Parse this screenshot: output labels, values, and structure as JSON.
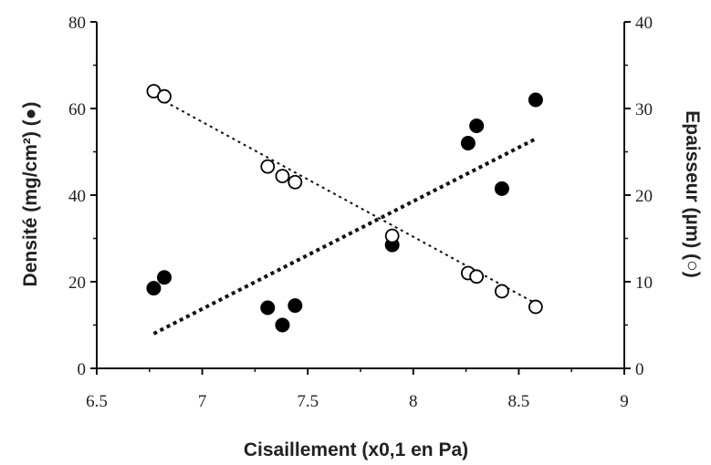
{
  "chart_data": {
    "type": "scatter",
    "xlabel": "Cisaillement (x0,1 en Pa)",
    "ylabel_left": "Densité (mg/cm²) (●)",
    "ylabel_right": "Epaisseur (µm) (○)",
    "xlim": [
      6.5,
      9
    ],
    "ylim_left": [
      0,
      80
    ],
    "ylim_right": [
      0,
      40
    ],
    "x_ticks": [
      "6.5",
      "7",
      "7.5",
      "8",
      "8.5",
      "9"
    ],
    "y_ticks_left": [
      "0",
      "20",
      "40",
      "60",
      "80"
    ],
    "y_ticks_right": [
      "0",
      "10",
      "20",
      "30",
      "40"
    ],
    "grid": false,
    "series": [
      {
        "axis": "left",
        "marker": "filled-circle",
        "color": "#000000",
        "x": [
          6.77,
          6.82,
          7.31,
          7.38,
          7.44,
          7.9,
          8.26,
          8.3,
          8.42,
          8.58
        ],
        "y": [
          18.5,
          21,
          14,
          10,
          14.5,
          28.5,
          52,
          56,
          41.5,
          62
        ]
      },
      {
        "axis": "right",
        "marker": "open-circle",
        "color": "#000000",
        "x": [
          6.77,
          6.82,
          7.31,
          7.38,
          7.44,
          7.9,
          8.26,
          8.3,
          8.42,
          8.58
        ],
        "y": [
          32,
          31.4,
          23.3,
          22.2,
          21.5,
          15.3,
          11,
          10.6,
          8.9,
          7.1
        ]
      }
    ],
    "trendlines": [
      {
        "axis": "left",
        "style": "dotted-thick",
        "x": [
          6.77,
          8.58
        ],
        "y": [
          8,
          53
        ]
      },
      {
        "axis": "right",
        "style": "dotted-thin",
        "x": [
          6.77,
          8.58
        ],
        "y": [
          31.5,
          7.5
        ]
      }
    ]
  }
}
